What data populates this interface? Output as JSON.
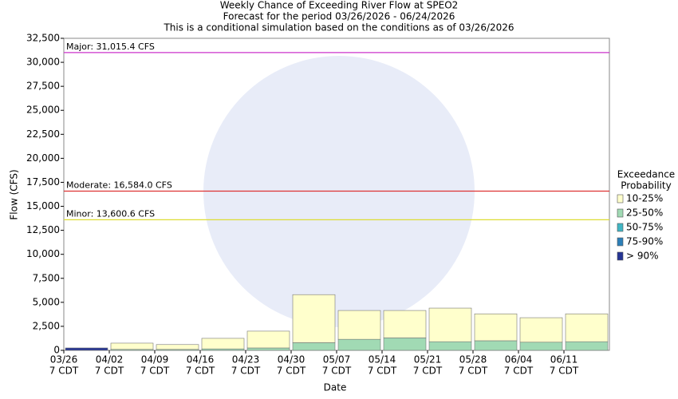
{
  "chart_data": {
    "type": "stacked_bar",
    "title": "Weekly Chance of Exceeding River Flow at SPEO2",
    "subtitle": "Forecast for the period 03/26/2026 - 06/24/2026",
    "note": "This is a conditional simulation based on the conditions as of 03/26/2026",
    "y_label": "Flow (CFS)",
    "x_label": "Date",
    "categories": [
      "03/26",
      "04/02",
      "04/09",
      "04/16",
      "04/23",
      "04/30",
      "05/07",
      "05/14",
      "05/21",
      "05/28",
      "06/04",
      "06/11"
    ],
    "category_sublabels": [
      "7 CDT",
      "7 CDT",
      "7 CDT",
      "7 CDT",
      "7 CDT",
      "7 CDT",
      "7 CDT",
      "7 CDT",
      "7 CDT",
      "7 CDT",
      "7 CDT",
      "7 CDT"
    ],
    "legend_title": [
      "Exceedance",
      "Probability"
    ],
    "series": [
      {
        "name": "> 90%",
        "color": "#253494",
        "values": [
          250,
          0,
          0,
          0,
          0,
          0,
          0,
          0,
          0,
          0,
          0,
          0
        ]
      },
      {
        "name": "75-90%",
        "color": "#2c7fb8",
        "values": [
          0,
          0,
          0,
          0,
          0,
          0,
          0,
          0,
          0,
          0,
          0,
          0
        ]
      },
      {
        "name": "50-75%",
        "color": "#41b6c4",
        "values": [
          0,
          0,
          0,
          0,
          0,
          0,
          0,
          0,
          0,
          0,
          0,
          0
        ]
      },
      {
        "name": "25-50%",
        "color": "#a1dab4",
        "values": [
          0,
          100,
          100,
          150,
          250,
          800,
          1150,
          1300,
          900,
          1000,
          850,
          900
        ]
      },
      {
        "name": "10-25%",
        "color": "#ffffcc",
        "values": [
          0,
          650,
          500,
          1100,
          1750,
          5000,
          3000,
          2850,
          3500,
          2800,
          2550,
          2900
        ]
      }
    ],
    "thresholds": [
      {
        "label": "Major: 31,015.4 CFS",
        "value": 31015.4,
        "color": "#cc33cc"
      },
      {
        "label": "Moderate: 16,584.0 CFS",
        "value": 16584.0,
        "color": "#dd3333"
      },
      {
        "label": "Minor: 13,600.6 CFS",
        "value": 13600.6,
        "color": "#dddd33"
      }
    ],
    "ylim": [
      0,
      32500
    ],
    "yticks": [
      0,
      {
        "value": 2500,
        "label": "2,500"
      },
      {
        "value": 5000,
        "label": "5,000"
      },
      {
        "value": 7500,
        "label": "7,500"
      },
      {
        "value": 10000,
        "label": "10,000"
      },
      {
        "value": 12500,
        "label": "12,500"
      },
      {
        "value": 15000,
        "label": "15,000"
      },
      {
        "value": 17500,
        "label": "17,500"
      },
      {
        "value": 20000,
        "label": "20,000"
      },
      {
        "value": 22500,
        "label": "22,500"
      },
      {
        "value": 25000,
        "label": "25,000"
      },
      {
        "value": 27500,
        "label": "27,500"
      },
      {
        "value": 30000,
        "label": "30,000"
      },
      {
        "value": 32500,
        "label": "32,500"
      }
    ]
  }
}
